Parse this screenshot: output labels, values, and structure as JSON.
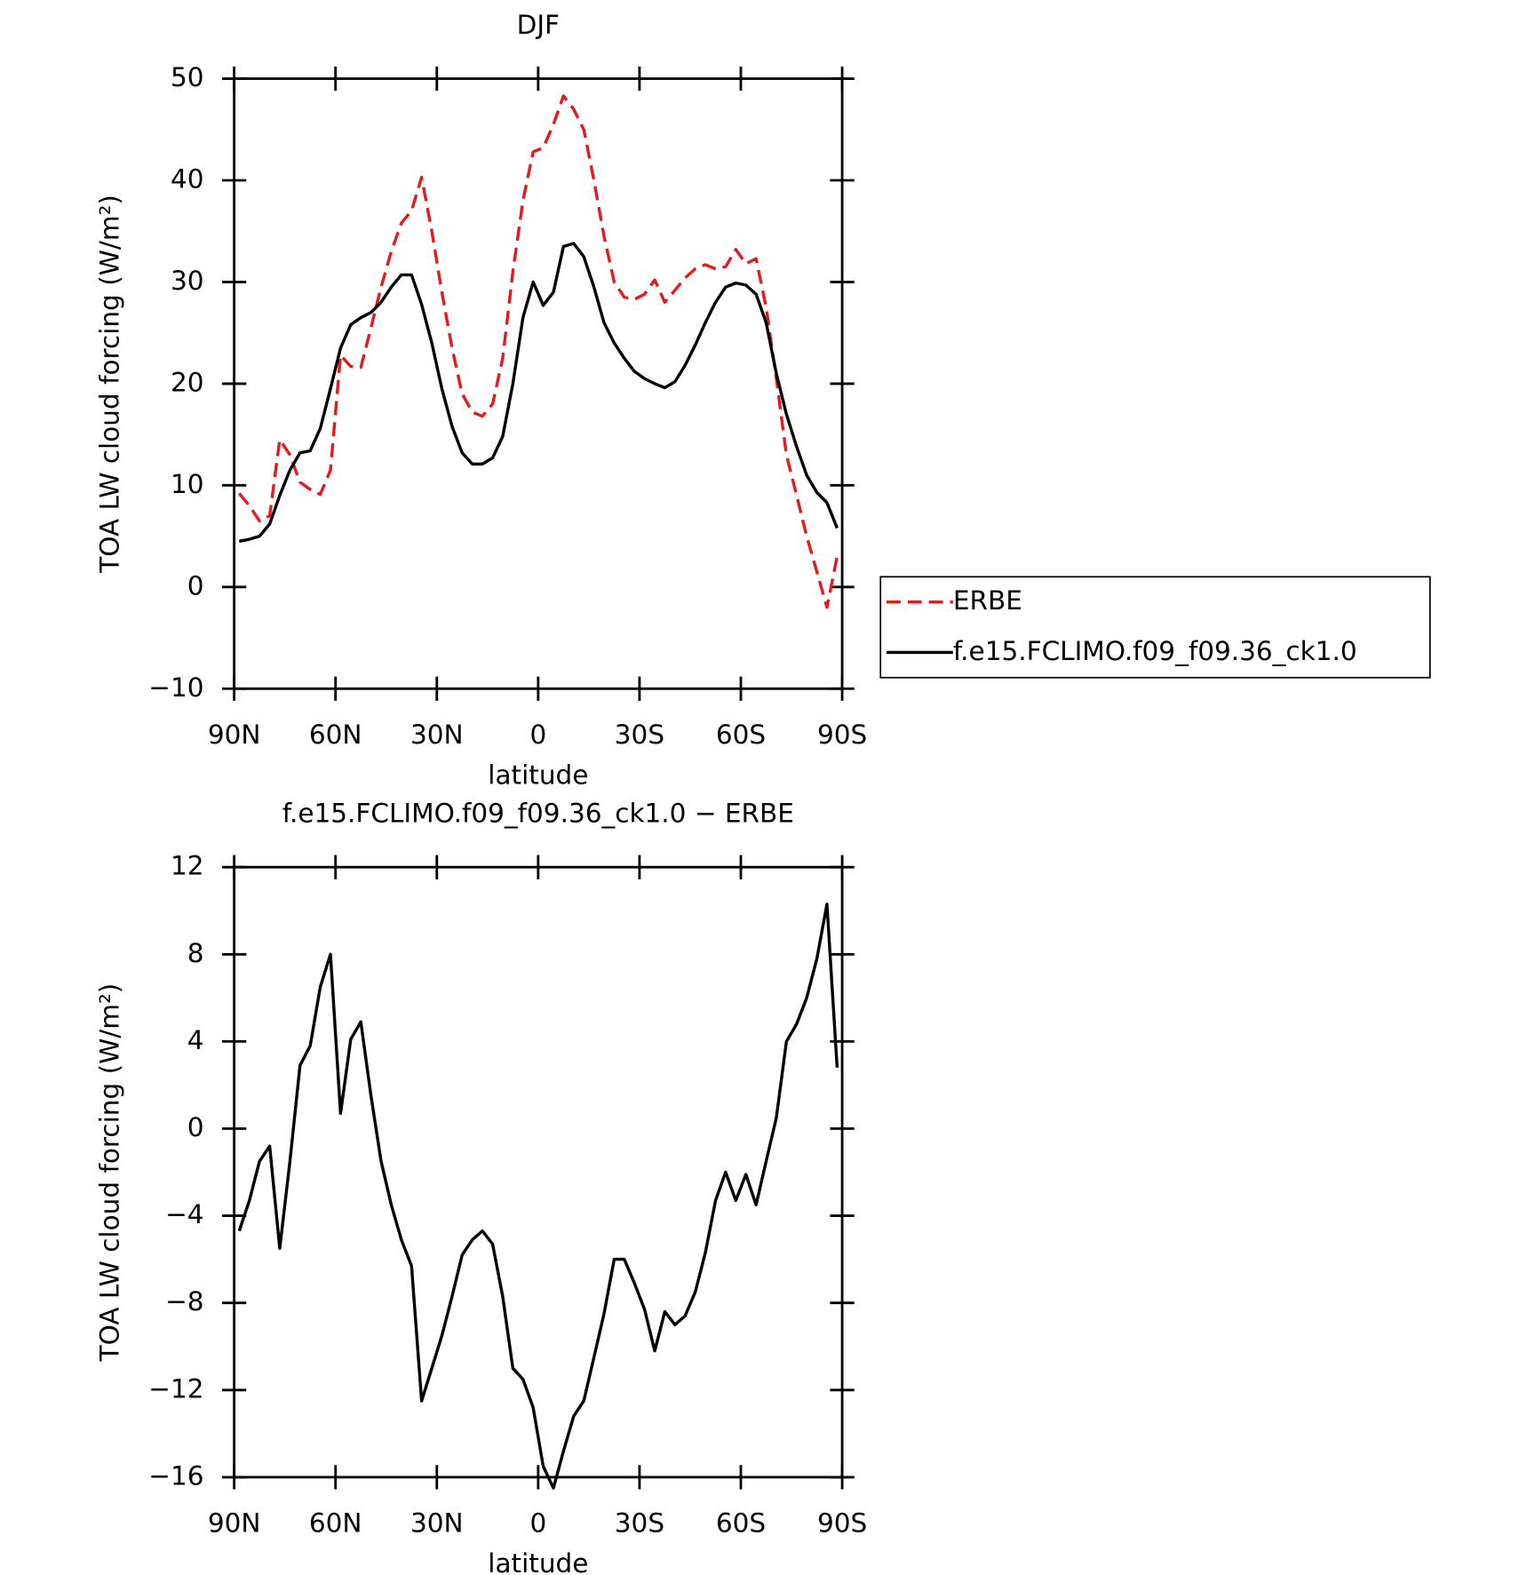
{
  "chart_data": [
    {
      "type": "line",
      "title": "DJF",
      "xlabel": "latitude",
      "ylabel": "TOA LW cloud forcing (W/m²)",
      "x": [
        88.5,
        85.5,
        82.5,
        79.5,
        76.5,
        73.5,
        70.5,
        67.5,
        64.5,
        61.5,
        58.5,
        55.5,
        52.5,
        49.5,
        46.5,
        43.5,
        40.5,
        37.5,
        34.5,
        31.5,
        28.5,
        25.5,
        22.5,
        19.5,
        16.5,
        13.5,
        10.5,
        7.5,
        4.5,
        1.5,
        -1.5,
        -4.5,
        -7.5,
        -10.5,
        -13.5,
        -16.5,
        -19.5,
        -22.5,
        -25.5,
        -28.5,
        -31.5,
        -34.5,
        -37.5,
        -40.5,
        -43.5,
        -46.5,
        -49.5,
        -52.5,
        -55.5,
        -58.5,
        -61.5,
        -64.5,
        -67.5,
        -70.5,
        -73.5,
        -76.5,
        -79.5,
        -82.5,
        -85.5,
        -88.5
      ],
      "series": [
        {
          "name": "ERBE",
          "color": "#e41a1c",
          "linestyle": "dashed",
          "values": [
            9.2,
            8.0,
            6.5,
            7.0,
            14.5,
            13.0,
            10.3,
            9.6,
            9.1,
            11.5,
            22.8,
            21.7,
            21.6,
            25.5,
            29.5,
            33.0,
            35.8,
            37.0,
            40.3,
            35.0,
            29.0,
            23.5,
            19.0,
            17.2,
            16.8,
            18.0,
            22.5,
            31.0,
            38.0,
            42.8,
            43.2,
            45.5,
            48.3,
            47.0,
            45.0,
            40.0,
            34.5,
            30.0,
            28.5,
            28.3,
            28.8,
            30.2,
            28.0,
            29.2,
            30.4,
            31.3,
            31.7,
            31.3,
            31.5,
            33.2,
            31.8,
            32.3,
            27.5,
            20.5,
            13.0,
            9.0,
            5.0,
            1.5,
            -2.0,
            3.0
          ]
        },
        {
          "name": "f.e15.FCLIMO.f09_f09.36_ck1.0",
          "color": "#000000",
          "linestyle": "solid",
          "values": [
            4.5,
            4.7,
            5.0,
            6.2,
            9.0,
            11.5,
            13.2,
            13.4,
            15.6,
            19.5,
            23.5,
            25.8,
            26.5,
            27.0,
            28.0,
            29.5,
            30.7,
            30.7,
            27.8,
            24.0,
            19.5,
            15.8,
            13.2,
            12.1,
            12.1,
            12.7,
            14.8,
            20.0,
            26.5,
            30.0,
            27.7,
            29.0,
            33.5,
            33.8,
            32.5,
            29.5,
            26.0,
            24.0,
            22.5,
            21.2,
            20.5,
            20.0,
            19.6,
            20.2,
            21.8,
            23.8,
            26.0,
            28.0,
            29.5,
            29.9,
            29.7,
            28.8,
            26.0,
            21.0,
            17.0,
            13.8,
            11.0,
            9.3,
            8.3,
            5.8
          ]
        }
      ],
      "xlim": [
        90,
        -90
      ],
      "xticks": [
        {
          "value": 90,
          "label": "90N"
        },
        {
          "value": 60,
          "label": "60N"
        },
        {
          "value": 30,
          "label": "30N"
        },
        0,
        {
          "value": -30,
          "label": "30S"
        },
        {
          "value": -60,
          "label": "60S"
        },
        {
          "value": -90,
          "label": "90S"
        }
      ],
      "ylim": [
        -10,
        50
      ],
      "yticks": [
        {
          "value": -10,
          "label": "−10"
        },
        0,
        10,
        20,
        30,
        40,
        50
      ],
      "legend": "outside-right"
    },
    {
      "type": "line",
      "title": "f.e15.FCLIMO.f09_f09.36_ck1.0 − ERBE",
      "xlabel": "latitude",
      "ylabel": "TOA LW cloud forcing (W/m²)",
      "x": [
        88.5,
        85.5,
        82.5,
        79.5,
        76.5,
        73.5,
        70.5,
        67.5,
        64.5,
        61.5,
        58.5,
        55.5,
        52.5,
        49.5,
        46.5,
        43.5,
        40.5,
        37.5,
        34.5,
        31.5,
        28.5,
        25.5,
        22.5,
        19.5,
        16.5,
        13.5,
        10.5,
        7.5,
        4.5,
        1.5,
        -1.5,
        -4.5,
        -7.5,
        -10.5,
        -13.5,
        -16.5,
        -19.5,
        -22.5,
        -25.5,
        -28.5,
        -31.5,
        -34.5,
        -37.5,
        -40.5,
        -43.5,
        -46.5,
        -49.5,
        -52.5,
        -55.5,
        -58.5,
        -61.5,
        -64.5,
        -67.5,
        -70.5,
        -73.5,
        -76.5,
        -79.5,
        -82.5,
        -85.5,
        -88.5
      ],
      "series": [
        {
          "color": "#000000",
          "linestyle": "solid",
          "values": [
            -4.7,
            -3.3,
            -1.5,
            -0.8,
            -5.5,
            -1.5,
            2.9,
            3.8,
            6.5,
            8.0,
            0.7,
            4.1,
            4.9,
            1.5,
            -1.5,
            -3.5,
            -5.1,
            -6.3,
            -12.5,
            -11.0,
            -9.5,
            -7.7,
            -5.8,
            -5.1,
            -4.7,
            -5.3,
            -7.7,
            -11.0,
            -11.5,
            -12.8,
            -15.5,
            -16.5,
            -14.8,
            -13.2,
            -12.5,
            -10.5,
            -8.5,
            -6.0,
            -6.0,
            -7.1,
            -8.3,
            -10.2,
            -8.4,
            -9.0,
            -8.6,
            -7.5,
            -5.7,
            -3.3,
            -2.0,
            -3.3,
            -2.1,
            -3.5,
            -1.5,
            0.5,
            4.0,
            4.8,
            6.0,
            7.8,
            10.3,
            2.8
          ]
        }
      ],
      "xlim": [
        90,
        -90
      ],
      "xticks": [
        {
          "value": 90,
          "label": "90N"
        },
        {
          "value": 60,
          "label": "60N"
        },
        {
          "value": 30,
          "label": "30N"
        },
        0,
        {
          "value": -30,
          "label": "30S"
        },
        {
          "value": -60,
          "label": "60S"
        },
        {
          "value": -90,
          "label": "90S"
        }
      ],
      "ylim": [
        -16,
        12
      ],
      "yticks": [
        {
          "value": -16,
          "label": "−16"
        },
        {
          "value": -12,
          "label": "−12"
        },
        {
          "value": -8,
          "label": "−8"
        },
        {
          "value": -4,
          "label": "−4"
        },
        0,
        4,
        8,
        12
      ]
    }
  ]
}
